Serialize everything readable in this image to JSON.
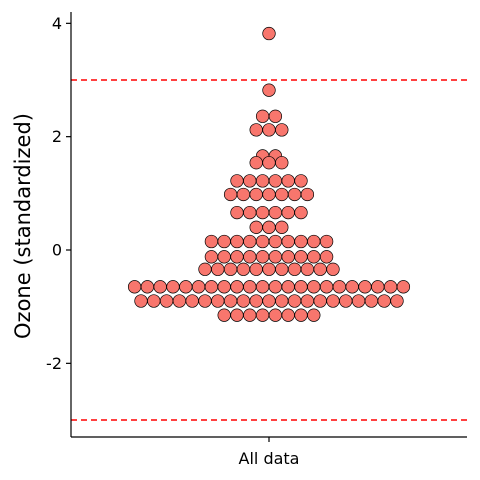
{
  "chart_data": {
    "type": "dotplot",
    "ylabel": "Ozone (standardized)",
    "categories": [
      "All data"
    ],
    "ylim": [
      -3.3,
      4.2
    ],
    "yticks": [
      -2,
      0,
      2,
      4
    ],
    "yticklabels": [
      "-2",
      "0",
      "2",
      "4"
    ],
    "reference_lines": [
      {
        "y": 3,
        "style": "dashed",
        "color": "#FF0000"
      },
      {
        "y": -3,
        "style": "dashed",
        "color": "#FF0000"
      }
    ],
    "dot_fill": "#F8766D",
    "dot_stroke": "#000000",
    "grid": false,
    "legend": "none",
    "bins": [
      {
        "y": 3.82,
        "count": 1
      },
      {
        "y": 2.82,
        "count": 1
      },
      {
        "y": 2.36,
        "count": 2
      },
      {
        "y": 2.12,
        "count": 3
      },
      {
        "y": 1.66,
        "count": 2
      },
      {
        "y": 1.54,
        "count": 3
      },
      {
        "y": 1.22,
        "count": 6
      },
      {
        "y": 0.98,
        "count": 7
      },
      {
        "y": 0.66,
        "count": 6
      },
      {
        "y": 0.4,
        "count": 3
      },
      {
        "y": 0.15,
        "count": 10
      },
      {
        "y": -0.12,
        "count": 10
      },
      {
        "y": -0.34,
        "count": 11
      },
      {
        "y": -0.65,
        "count": 22
      },
      {
        "y": -0.9,
        "count": 21
      },
      {
        "y": -1.15,
        "count": 8
      }
    ]
  }
}
